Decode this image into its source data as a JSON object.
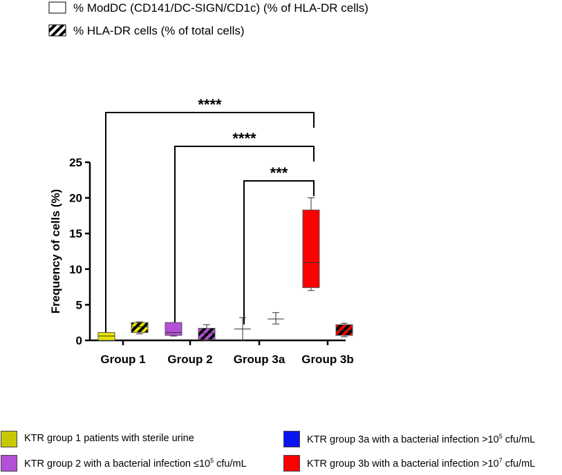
{
  "chart_data": {
    "type": "box",
    "ylabel": "Frequency of cells (%)",
    "ylim": [
      0,
      25
    ],
    "yticks": [
      "0",
      "5",
      "10",
      "15",
      "20",
      "25"
    ],
    "categories": [
      "Group 1",
      "Group 2",
      "Group 3a",
      "Group 3b"
    ],
    "series": [
      {
        "name": "% ModDC (CD141/DC-SIGN/CD1c) (% of HLA-DR cells)",
        "pattern": "solid",
        "boxes": [
          {
            "min": 0.0,
            "q1": 0.0,
            "median": 0.6,
            "q3": 1.1,
            "max": 1.1
          },
          {
            "min": 0.6,
            "q1": 0.7,
            "median": 1.1,
            "q3": 2.5,
            "max": 2.5
          },
          {
            "min": 0.0,
            "q1": 1.6,
            "median": 1.6,
            "q3": 1.6,
            "max": 3.2
          },
          {
            "min": 7.0,
            "q1": 7.4,
            "median": 10.9,
            "q3": 18.3,
            "max": 20.0
          }
        ]
      },
      {
        "name": "% HLA-DR cells (% of total cells)",
        "pattern": "hatched",
        "boxes": [
          {
            "min": 0.9,
            "q1": 1.1,
            "median": 1.9,
            "q3": 2.5,
            "max": 2.6
          },
          {
            "min": 0.0,
            "q1": 0.1,
            "median": 1.0,
            "q3": 1.7,
            "max": 2.2
          },
          {
            "min": 2.3,
            "q1": 3.0,
            "median": 3.0,
            "q3": 3.0,
            "max": 3.9
          },
          {
            "min": 0.5,
            "q1": 0.7,
            "median": 1.4,
            "q3": 2.2,
            "max": 2.4
          }
        ]
      }
    ],
    "group_colors": [
      "#e6e600",
      "#b44fd8",
      "#0a14f0",
      "#ff0000"
    ],
    "significance": [
      {
        "from": "Group 1",
        "to": "Group 3b",
        "label": "****"
      },
      {
        "from": "Group 2",
        "to": "Group 3b",
        "label": "****"
      },
      {
        "from": "Group 3a",
        "to": "Group 3b",
        "label": "***"
      }
    ]
  },
  "legend_bottom": [
    {
      "text": "KTR group 1 patients with sterile urine",
      "color": "#c8c800"
    },
    {
      "text_pre": "KTR group 3a with a bacterial infection >10",
      "sup": "5",
      "text_post": " cfu/mL",
      "color": "#0a14f0"
    },
    {
      "text_pre": "KTR group 2 with a bacterial infection ≤10",
      "sup": "5",
      "text_post": " cfu/mL",
      "color": "#b44fd8"
    },
    {
      "text_pre": "KTR group 3b with a bacterial infection >10",
      "sup": "7",
      "text_post": " cfu/mL",
      "color": "#ff0000"
    }
  ]
}
